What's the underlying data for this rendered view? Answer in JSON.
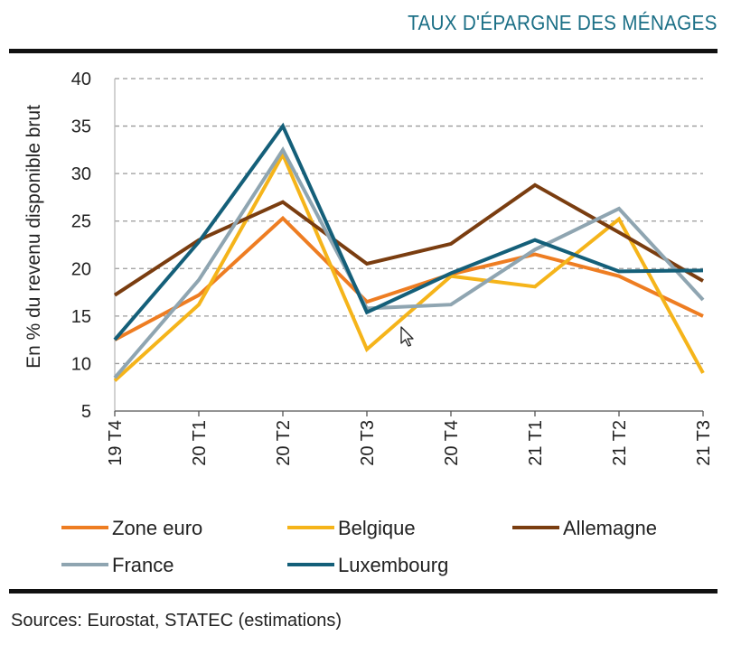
{
  "header": {
    "title": "TAUX D'ÉPARGNE DES MÉNAGES"
  },
  "footer": {
    "source": "Sources: Eurostat, STATEC (estimations)"
  },
  "colors": {
    "accent": "#1b6f86",
    "rule": "#111111",
    "grid": "#9a9a9a"
  },
  "chart_data": {
    "type": "line",
    "title": "TAUX D'ÉPARGNE DES MÉNAGES",
    "xlabel": "",
    "ylabel": "En % du revenu disponible brut",
    "ylim": [
      5,
      40
    ],
    "yticks": [
      "5",
      "10",
      "15",
      "20",
      "25",
      "30",
      "35",
      "40"
    ],
    "categories": [
      "19 T4",
      "20 T1",
      "20 T2",
      "20 T3",
      "20 T4",
      "21 T1",
      "21 T2",
      "21 T3"
    ],
    "grid": "horizontal dashed",
    "legend_position": "bottom",
    "series": [
      {
        "name": "Zone euro",
        "color": "#ee7d22",
        "values": [
          12.5,
          17.2,
          25.3,
          16.5,
          19.4,
          21.5,
          19.2,
          15.0
        ]
      },
      {
        "name": "Belgique",
        "color": "#f5b41a",
        "values": [
          8.2,
          16.2,
          32.0,
          11.5,
          19.2,
          18.1,
          25.2,
          9.0
        ]
      },
      {
        "name": "Allemagne",
        "color": "#7a3d10",
        "values": [
          17.2,
          23.0,
          27.0,
          20.5,
          22.6,
          28.8,
          23.8,
          18.7
        ]
      },
      {
        "name": "France",
        "color": "#8fa5b1",
        "values": [
          8.5,
          18.8,
          32.5,
          15.8,
          16.2,
          22.0,
          26.3,
          16.7
        ]
      },
      {
        "name": "Luxembourg",
        "color": "#145f79",
        "values": [
          12.5,
          22.8,
          35.0,
          15.4,
          19.5,
          23.0,
          19.7,
          19.8
        ]
      }
    ]
  }
}
